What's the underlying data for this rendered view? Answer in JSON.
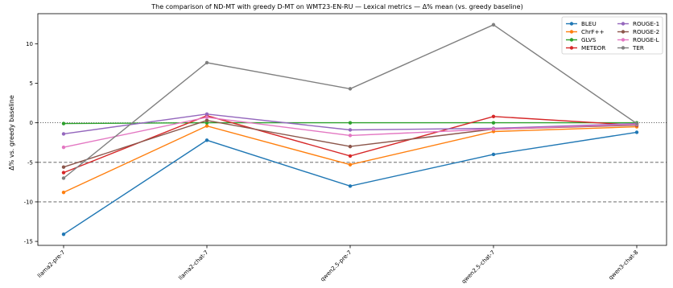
{
  "chart_data": {
    "type": "line",
    "title": "The comparison of ND-MT with greedy D-MT on WMT23-EN-RU — Lexical metrics — Δ% mean (vs. greedy baseline)",
    "xlabel": "",
    "ylabel": "Δ% vs. greedy baseline",
    "categories": [
      "llama2-pre-7",
      "llama2-chat-7",
      "qwen2.5-pre-7",
      "qwen2.5-chat-7",
      "qwen3-chat-8"
    ],
    "ylim": [
      -15.5,
      13.8
    ],
    "yticks": [
      -15,
      -10,
      -5,
      0,
      5,
      10
    ],
    "reference_lines": [
      {
        "y": 0,
        "style": "dotted"
      },
      {
        "y": -5,
        "style": "dashed"
      },
      {
        "y": -10,
        "style": "dashed"
      }
    ],
    "legend_position": "top-right",
    "series": [
      {
        "name": "BLEU",
        "color": "#1f77b4",
        "values": [
          -14.1,
          -2.2,
          -8.0,
          -4.0,
          -1.2
        ]
      },
      {
        "name": "ChrF++",
        "color": "#ff7f0e",
        "values": [
          -8.8,
          -0.4,
          -5.3,
          -1.1,
          -0.5
        ]
      },
      {
        "name": "GLVS",
        "color": "#2ca02c",
        "values": [
          -0.1,
          0.0,
          0.0,
          0.0,
          0.0
        ]
      },
      {
        "name": "METEOR",
        "color": "#d62728",
        "values": [
          -6.3,
          0.9,
          -4.2,
          0.8,
          -0.3
        ]
      },
      {
        "name": "ROUGE-1",
        "color": "#9467bd",
        "values": [
          -1.4,
          1.1,
          -0.9,
          -0.7,
          -0.1
        ]
      },
      {
        "name": "ROUGE-2",
        "color": "#8c564b",
        "values": [
          -5.6,
          0.3,
          -3.0,
          -0.8,
          -0.3
        ]
      },
      {
        "name": "ROUGE-L",
        "color": "#e377c2",
        "values": [
          -3.1,
          0.7,
          -1.6,
          -0.8,
          -0.2
        ]
      },
      {
        "name": "TER",
        "color": "#7f7f7f",
        "values": [
          -7.0,
          7.6,
          4.3,
          12.4,
          -0.1
        ]
      }
    ]
  }
}
